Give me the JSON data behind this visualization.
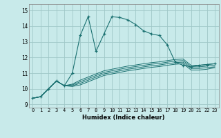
{
  "title": "",
  "xlabel": "Humidex (Indice chaleur)",
  "background_color": "#c8eaea",
  "grid_color": "#a0c8c8",
  "line_color": "#1a7070",
  "xlim": [
    -0.5,
    23.5
  ],
  "ylim": [
    8.8,
    15.4
  ],
  "yticks": [
    9,
    10,
    11,
    12,
    13,
    14,
    15
  ],
  "xticks": [
    0,
    1,
    2,
    3,
    4,
    5,
    6,
    7,
    8,
    9,
    10,
    11,
    12,
    13,
    14,
    15,
    16,
    17,
    18,
    19,
    20,
    21,
    22,
    23
  ],
  "series": [
    [
      9.4,
      9.5,
      10.0,
      10.5,
      10.2,
      11.0,
      13.4,
      14.6,
      12.4,
      13.5,
      14.6,
      14.55,
      14.4,
      14.1,
      13.7,
      13.5,
      13.4,
      12.8,
      11.7,
      11.5,
      11.4,
      11.5,
      11.55,
      11.6
    ],
    [
      9.4,
      9.5,
      10.0,
      10.5,
      10.2,
      10.3,
      10.55,
      10.75,
      10.95,
      11.15,
      11.25,
      11.35,
      11.45,
      11.52,
      11.6,
      11.67,
      11.72,
      11.8,
      11.87,
      11.9,
      11.5,
      11.5,
      11.55,
      11.6
    ],
    [
      9.4,
      9.5,
      10.0,
      10.5,
      10.2,
      10.25,
      10.45,
      10.65,
      10.85,
      11.05,
      11.15,
      11.25,
      11.35,
      11.42,
      11.5,
      11.57,
      11.62,
      11.7,
      11.77,
      11.8,
      11.4,
      11.4,
      11.45,
      11.5
    ],
    [
      9.4,
      9.5,
      10.0,
      10.5,
      10.2,
      10.2,
      10.35,
      10.55,
      10.75,
      10.95,
      11.05,
      11.15,
      11.25,
      11.32,
      11.4,
      11.47,
      11.52,
      11.6,
      11.67,
      11.7,
      11.3,
      11.3,
      11.35,
      11.4
    ],
    [
      9.4,
      9.5,
      10.0,
      10.5,
      10.2,
      10.15,
      10.25,
      10.45,
      10.65,
      10.85,
      10.95,
      11.05,
      11.15,
      11.22,
      11.3,
      11.37,
      11.42,
      11.5,
      11.57,
      11.6,
      11.2,
      11.2,
      11.25,
      11.35
    ]
  ]
}
